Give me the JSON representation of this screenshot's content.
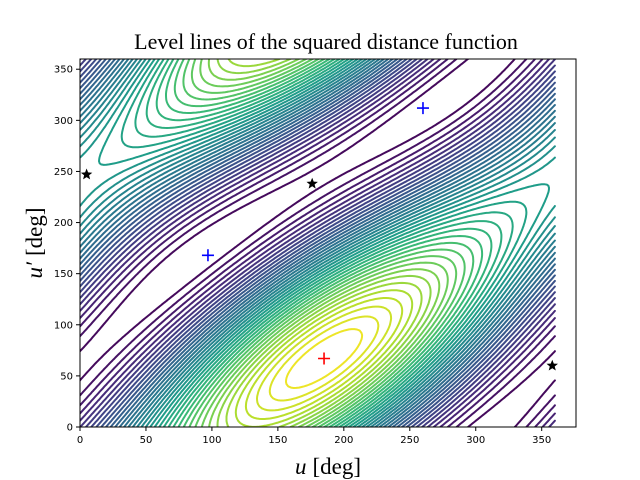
{
  "chart_data": {
    "type": "contour",
    "title": "Level lines of the squared distance function",
    "xlabel_var": "u",
    "xlabel_unit": "[deg]",
    "ylabel_var": "u′",
    "ylabel_unit": "[deg]",
    "xlim": [
      0,
      376
    ],
    "ylim": [
      0,
      360
    ],
    "xticks": [
      0,
      50,
      100,
      150,
      200,
      250,
      300,
      350
    ],
    "yticks": [
      0,
      50,
      100,
      150,
      200,
      250,
      300,
      350
    ],
    "colormap": "viridis",
    "grid": false,
    "levels": 40,
    "markers": [
      {
        "kind": "plus",
        "color": "#ff0000",
        "x": 185,
        "y": 67
      },
      {
        "kind": "plus",
        "color": "#0000ff",
        "x": 97,
        "y": 168
      },
      {
        "kind": "plus",
        "color": "#0000ff",
        "x": 260,
        "y": 312
      },
      {
        "kind": "star",
        "color": "#000000",
        "x": 5,
        "y": 247
      },
      {
        "kind": "star",
        "color": "#000000",
        "x": 176,
        "y": 238
      },
      {
        "kind": "star",
        "color": "#000000",
        "x": 358,
        "y": 60
      }
    ]
  }
}
